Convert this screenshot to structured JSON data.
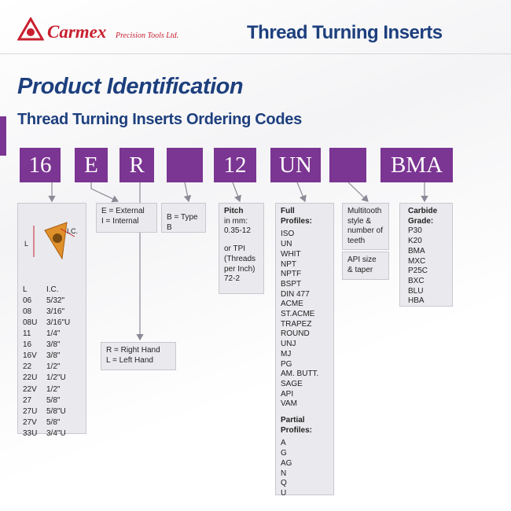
{
  "header": {
    "brand": "Carmex",
    "tagline": "Precision Tools Ltd.",
    "title": "Thread Turning Inserts"
  },
  "heading": "Product Identification",
  "subheading": "Thread Turning Inserts Ordering Codes",
  "codes": {
    "size": "16",
    "hand_type": "E",
    "direction": "R",
    "pitch": "12",
    "profile": "UN",
    "grade": "BMA"
  },
  "size_box": {
    "diagram_labels": [
      "L",
      "I.C."
    ],
    "columns": [
      "L",
      "I.C."
    ],
    "rows": [
      [
        "06",
        "5/32\""
      ],
      [
        "08",
        "3/16\""
      ],
      [
        "08U",
        "3/16\"U"
      ],
      [
        "11",
        "1/4\""
      ],
      [
        "16",
        "3/8\""
      ],
      [
        "16V",
        "3/8\""
      ],
      [
        "22",
        "1/2\""
      ],
      [
        "22U",
        "1/2\"U"
      ],
      [
        "22V",
        "1/2\""
      ],
      [
        "27",
        "5/8\""
      ],
      [
        "27U",
        "5/8\"U"
      ],
      [
        "27V",
        "5/8\""
      ],
      [
        "33U",
        "3/4\"U"
      ]
    ]
  },
  "type_box": [
    "E = External",
    "I = Internal"
  ],
  "direction_box": [
    "R = Right Hand",
    "L = Left Hand"
  ],
  "insert_type_box": "B = Type B",
  "pitch_box": {
    "title": "Pitch",
    "mm": [
      "in mm:",
      "0.35-12"
    ],
    "tpi": [
      "or TPI",
      "(Threads",
      "per Inch)",
      "72-2"
    ]
  },
  "profile_box": {
    "full_title": "Full Profiles:",
    "full": [
      "ISO",
      "UN",
      "WHIT",
      "NPT",
      "NPTF",
      "BSPT",
      "DIN 477",
      "ACME",
      "ST.ACME",
      "TRAPEZ",
      "ROUND",
      "UNJ",
      "MJ",
      "PG",
      "AM. BUTT.",
      "SAGE",
      "API",
      "VAM"
    ],
    "partial_title": "Partial Profiles:",
    "partial": [
      "A",
      "G",
      "AG",
      "N",
      "Q",
      "U"
    ]
  },
  "teeth_box": {
    "text": "Multitooth style & number of teeth",
    "api": "API size & taper"
  },
  "grade_box": {
    "title": "Carbide Grade:",
    "grades": [
      "P30",
      "K20",
      "BMA",
      "MXC",
      "P25C",
      "BXC",
      "BLU",
      "HBA"
    ]
  }
}
